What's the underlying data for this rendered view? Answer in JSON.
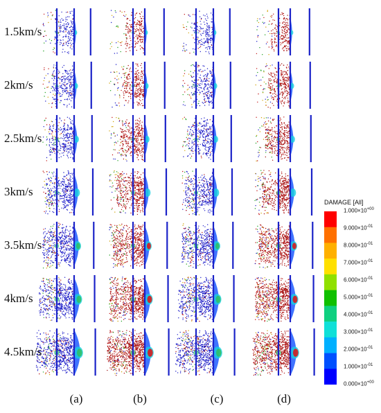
{
  "rows": [
    {
      "label": "1.5km/s",
      "intensity": 0.1
    },
    {
      "label": "2km/s",
      "intensity": 0.22
    },
    {
      "label": "2.5km/s",
      "intensity": 0.35
    },
    {
      "label": "3km/s",
      "intensity": 0.5
    },
    {
      "label": "3.5km/s",
      "intensity": 0.66
    },
    {
      "label": "4km/s",
      "intensity": 0.82
    },
    {
      "label": "4.5km/s",
      "intensity": 0.95
    }
  ],
  "columns": [
    {
      "label": "(a)",
      "debris_color": "#1c1cc8",
      "red_ratio": 0.05
    },
    {
      "label": "(b)",
      "debris_color": "#a01818",
      "red_ratio": 0.75
    },
    {
      "label": "(c)",
      "debris_color": "#1c1cc8",
      "red_ratio": 0.08
    },
    {
      "label": "(d)",
      "debris_color": "#a01818",
      "red_ratio": 0.7
    }
  ],
  "legend": {
    "title": "DAMAGE [All]",
    "ticks": [
      {
        "mantissa": "1.000",
        "exponent": "+00"
      },
      {
        "mantissa": "9.000",
        "exponent": "-01"
      },
      {
        "mantissa": "8.000",
        "exponent": "-01"
      },
      {
        "mantissa": "7.000",
        "exponent": "-01"
      },
      {
        "mantissa": "6.000",
        "exponent": "-01"
      },
      {
        "mantissa": "5.000",
        "exponent": "-01"
      },
      {
        "mantissa": "4.000",
        "exponent": "-01"
      },
      {
        "mantissa": "3.000",
        "exponent": "-01"
      },
      {
        "mantissa": "2.000",
        "exponent": "-01"
      },
      {
        "mantissa": "1.000",
        "exponent": "-01"
      },
      {
        "mantissa": "0.000",
        "exponent": "+00"
      }
    ],
    "colors": [
      "#ff0000",
      "#ff7000",
      "#ffb000",
      "#ffe000",
      "#90e000",
      "#10c000",
      "#10d080",
      "#10e0d8",
      "#00b0ff",
      "#0050ff",
      "#0000ff"
    ]
  },
  "plate_color": "#1a22c8"
}
